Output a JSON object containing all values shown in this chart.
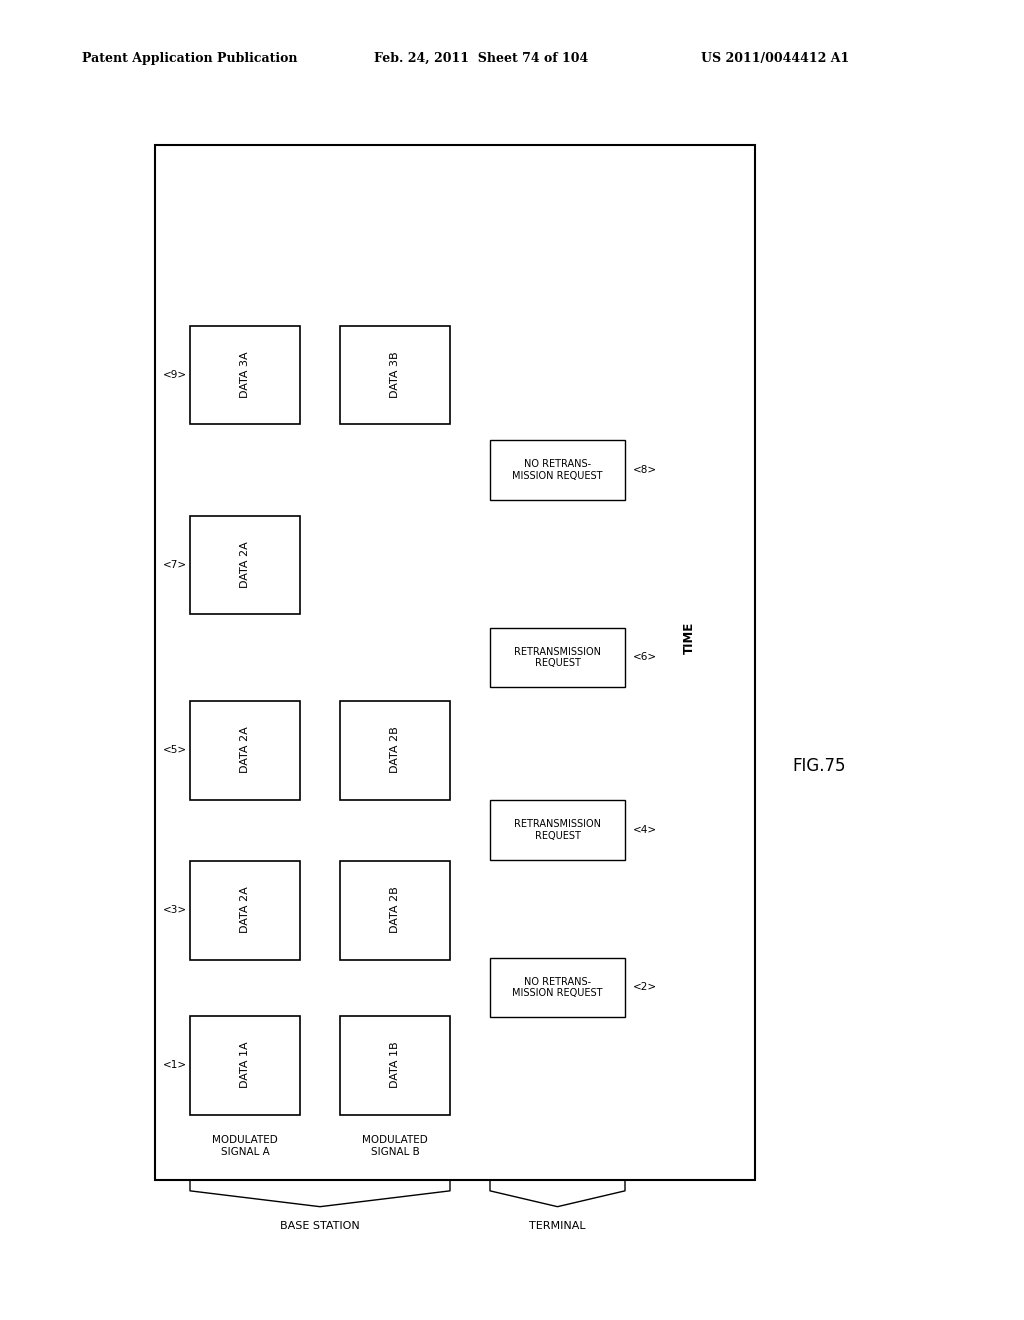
{
  "header_left": "Patent Application Publication",
  "header_mid": "Feb. 24, 2011  Sheet 74 of 104",
  "header_right": "US 2011/0044412 A1",
  "fig_label": "FIG.75",
  "time_label": "TIME",
  "rows_A": {
    "1": "DATA 1A",
    "3": "DATA 2A",
    "5": "DATA 2A",
    "7": "DATA 2A",
    "9": "DATA 3A"
  },
  "rows_B": {
    "1": "DATA 1B",
    "3": "DATA 2B",
    "5": "DATA 2B",
    "9": "DATA 3B"
  },
  "resp": {
    "2": "NO RETRANS-\nMISSION REQUEST",
    "4": "RETRANSMISSION\nREQUEST",
    "6": "RETRANSMISSION\nREQUEST",
    "8": "NO RETRANS-\nMISSION REQUEST"
  },
  "left_tags": {
    "1": "<1>",
    "3": "<3>",
    "5": "<5>",
    "7": "<7>",
    "9": "<9>"
  },
  "right_tags": {
    "2": "<2>",
    "4": "<4>",
    "6": "<6>",
    "8": "<8>"
  },
  "base_station_label": "BASE STATION",
  "terminal_label": "TERMINAL",
  "background_color": "#ffffff"
}
